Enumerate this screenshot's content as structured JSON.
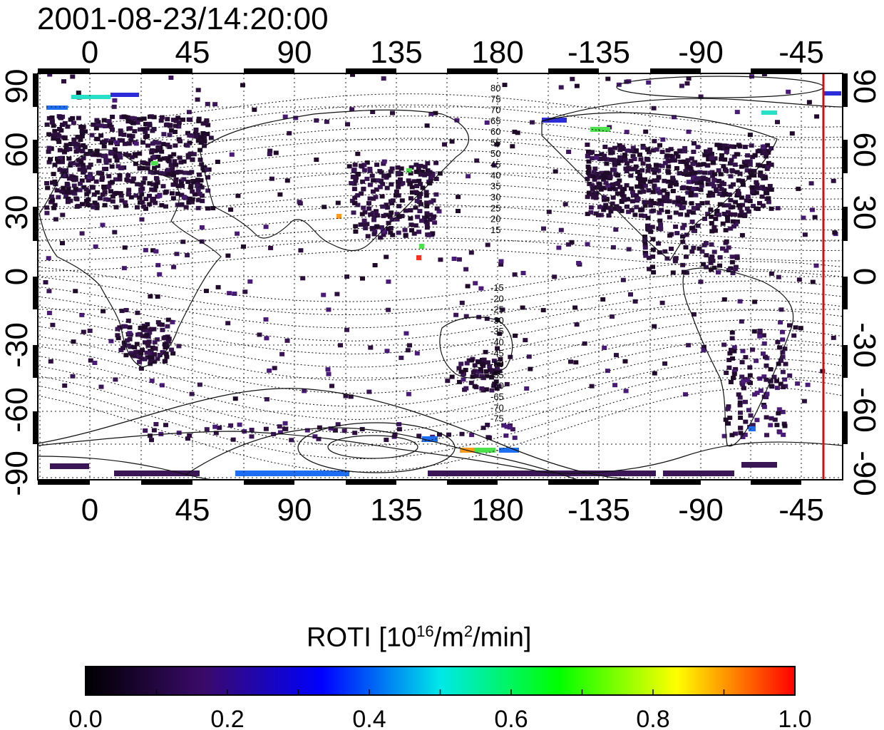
{
  "timestamp": "2001-08-23/14:20:00",
  "map": {
    "x_tick_labels": [
      "0",
      "45",
      "90",
      "135",
      "180",
      "-135",
      "-90",
      "-45"
    ],
    "y_tick_labels_left": [
      "90",
      "60",
      "30",
      "0",
      "-30",
      "-60",
      "-90"
    ],
    "y_tick_labels_right": [
      "90",
      "60",
      "30",
      "0",
      "-30",
      "-60",
      "-90"
    ],
    "graticule": "dotted",
    "terminator_color": "#d01010",
    "north_contour_labels": [
      "80",
      "75",
      "70",
      "65",
      "60",
      "55",
      "50",
      "45",
      "40",
      "35",
      "30",
      "25",
      "20",
      "15"
    ],
    "south_contour_labels": [
      "-15",
      "-20",
      "-25",
      "-30",
      "-35",
      "-40",
      "-45",
      "-50",
      "-55",
      "-60",
      "-65",
      "-70",
      "-75"
    ],
    "data_colors": [
      "#200a2a",
      "#2c0f3d",
      "#3a1656",
      "#4a1a78",
      "#2c2cd8",
      "#1d6ef0",
      "#26e0c8",
      "#4ce04c",
      "#ff3020",
      "#ff9a1a",
      "#f5e01a"
    ]
  },
  "colorbar": {
    "title_text": "ROTI  [10",
    "title_sup1": "16",
    "title_mid": "/m",
    "title_sup2": "2",
    "title_end": "/min]",
    "tick_labels": [
      "0.0",
      "0.2",
      "0.4",
      "0.6",
      "0.8",
      "1.0"
    ],
    "range": [
      0.0,
      1.0
    ],
    "colormap_stops": [
      "#000000",
      "#3a0a6a",
      "#0000ff",
      "#00e8e8",
      "#00ff00",
      "#ffff00",
      "#ff0000"
    ]
  }
}
